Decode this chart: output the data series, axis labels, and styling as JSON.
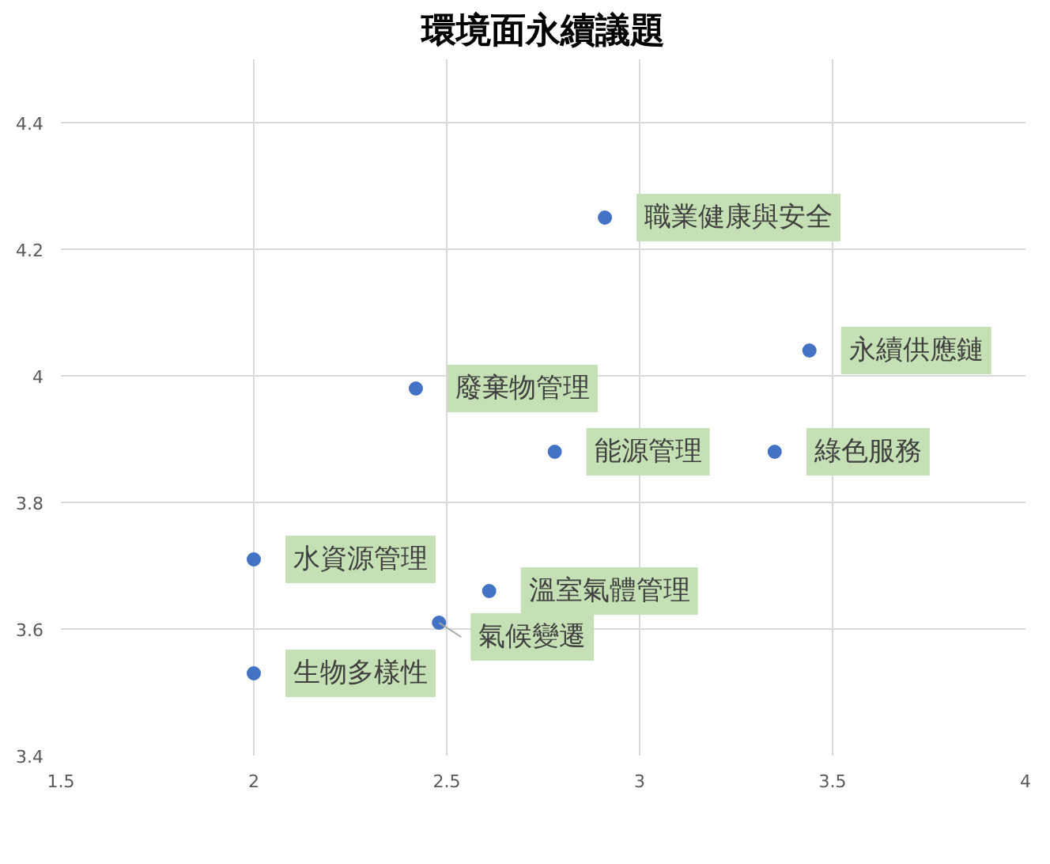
{
  "chart_data": {
    "type": "scatter",
    "title": "環境面永續議題",
    "x": [
      2.91,
      3.44,
      2.42,
      2.78,
      3.35,
      2.0,
      2.61,
      2.48,
      2.0
    ],
    "values": [
      4.25,
      4.04,
      3.98,
      3.88,
      3.88,
      3.71,
      3.66,
      3.61,
      3.53
    ],
    "value_labels": [
      "職業健康與安全",
      "永續供應鏈",
      "廢棄物管理",
      "能源管理",
      "綠色服務",
      "水資源管理",
      "溫室氣體管理",
      "氣候變遷",
      "生物多樣性"
    ],
    "color": "#4472c4",
    "marker": "circle",
    "xlim": [
      1.5,
      4
    ],
    "ylim": [
      3.4,
      4.5
    ],
    "xticks": [
      1.5,
      2,
      2.5,
      3,
      3.5,
      4
    ],
    "yticks": [
      3.4,
      3.6,
      3.8,
      4,
      4.2,
      4.4
    ],
    "grid": true
  }
}
